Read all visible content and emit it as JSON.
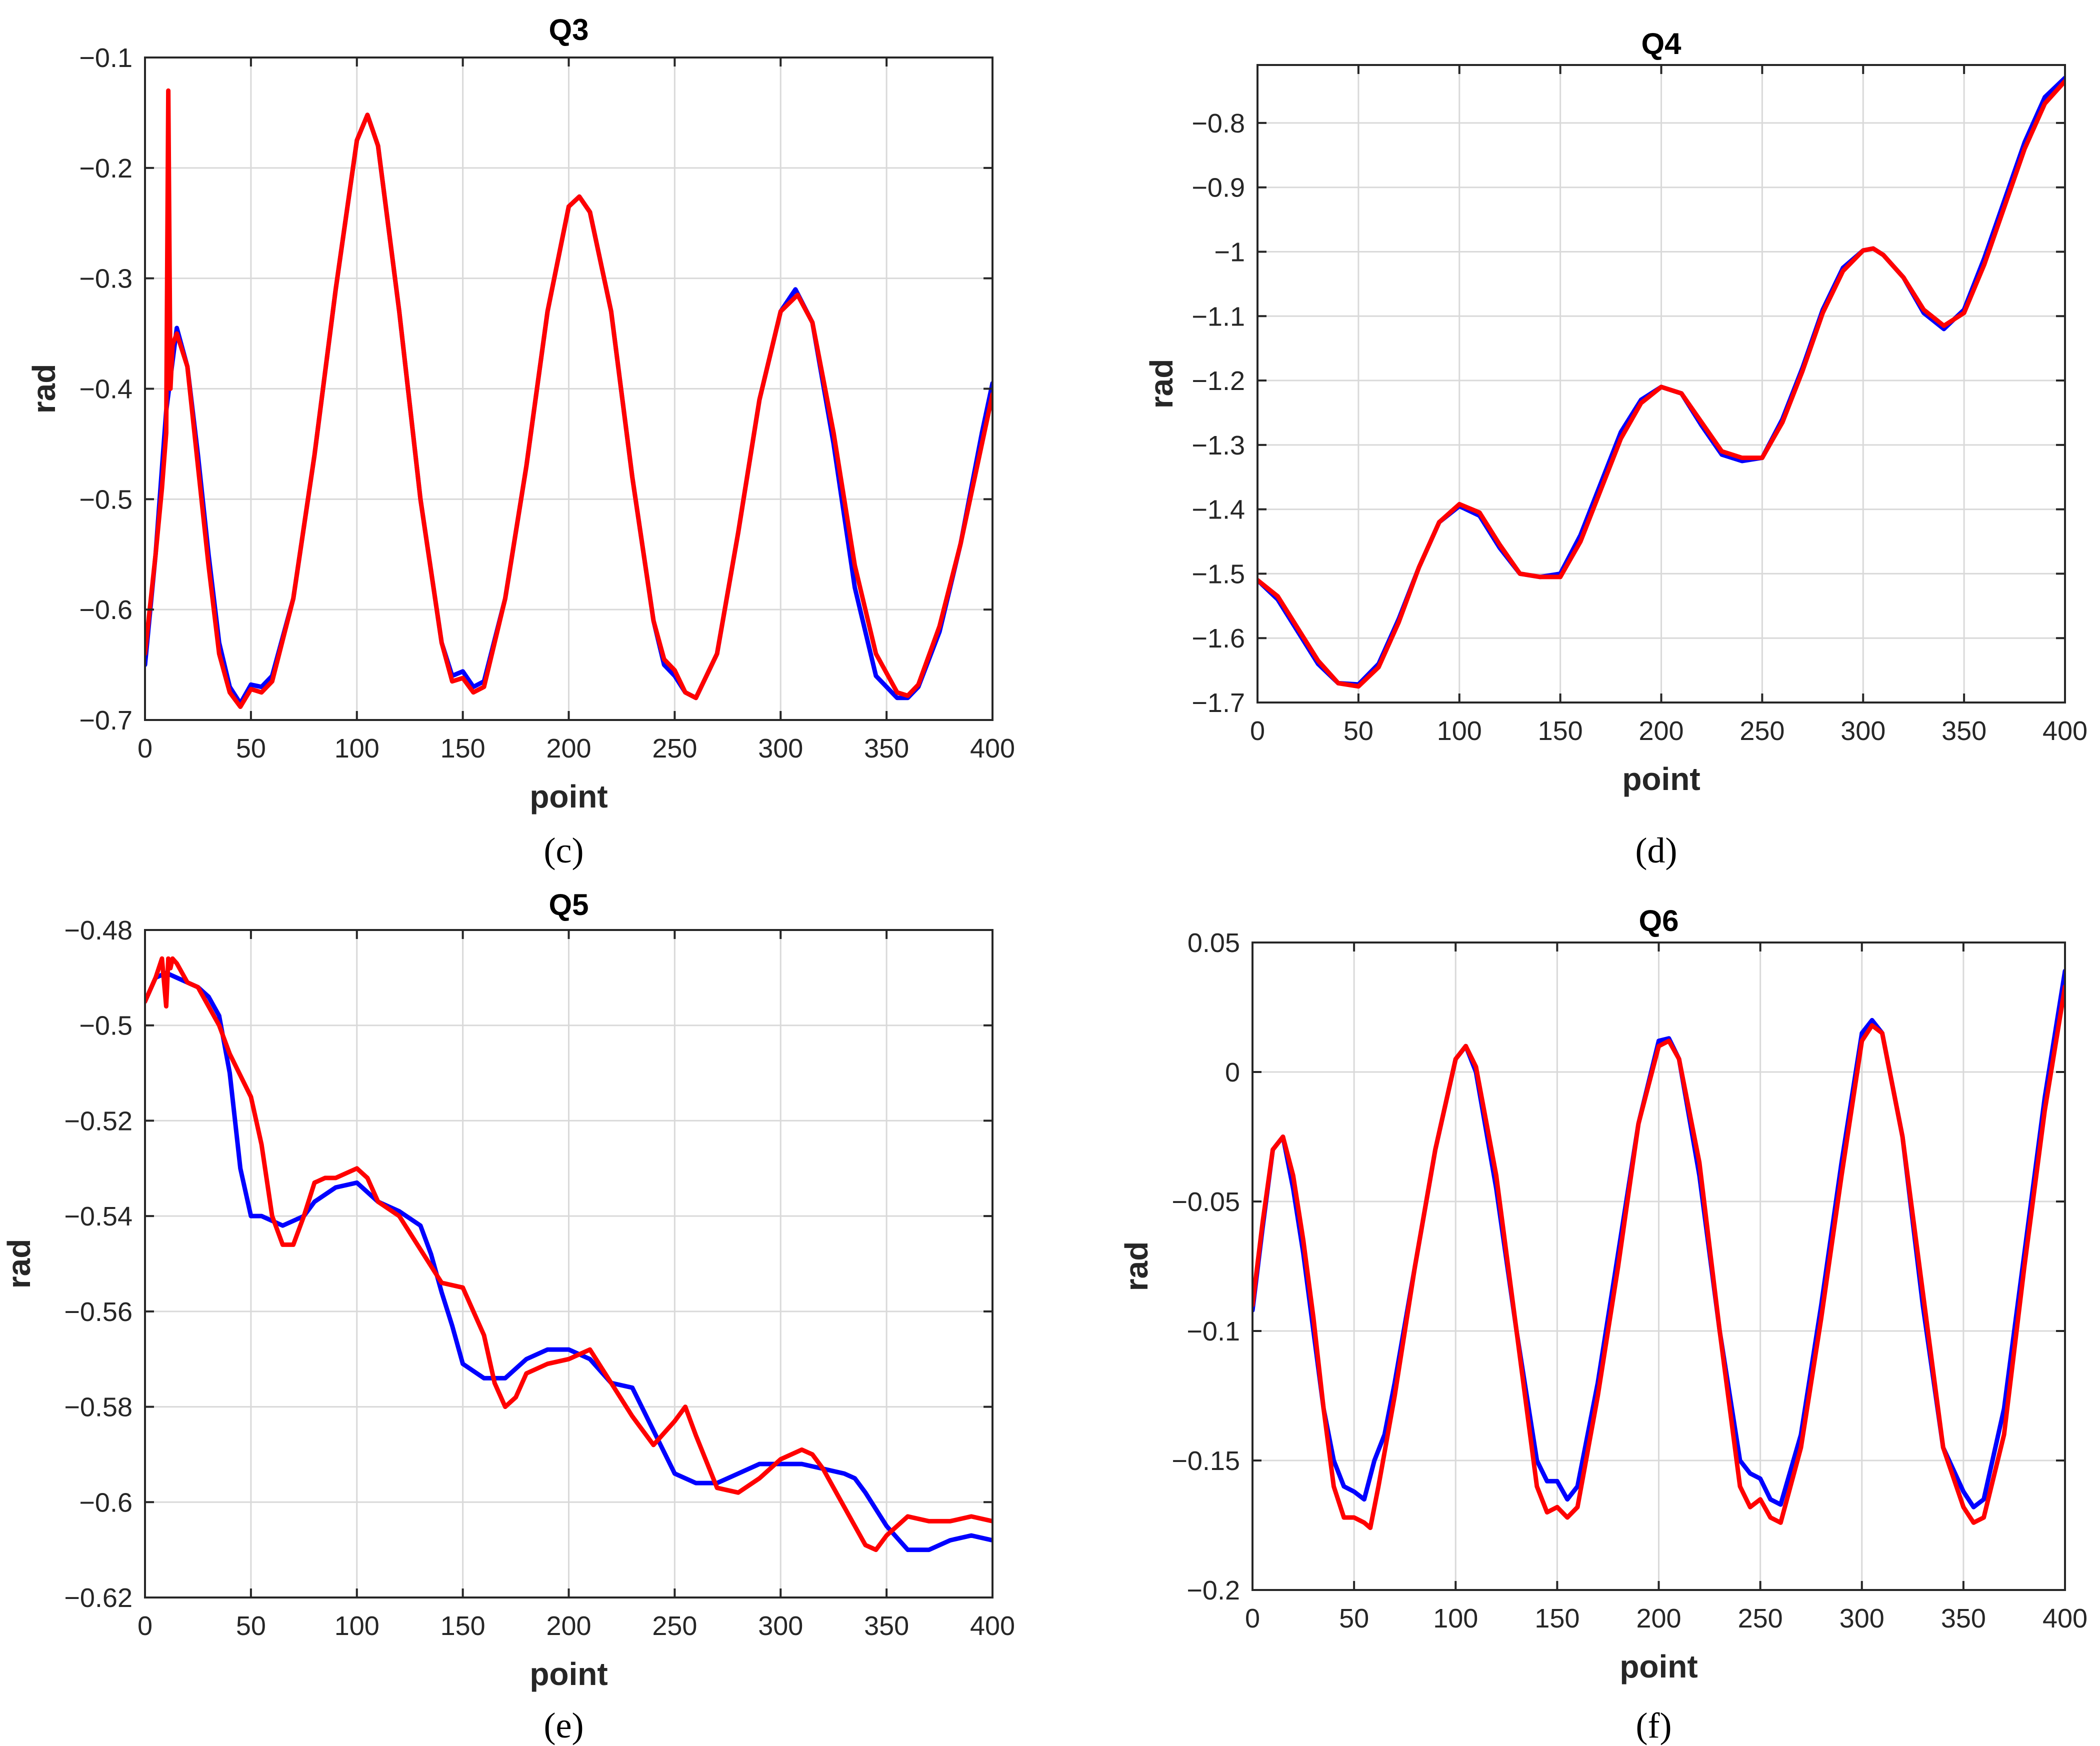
{
  "colors": {
    "measured": "#0000ff",
    "predicted": "#ff0000",
    "grid": "#d9d9d9",
    "axis": "#262626"
  },
  "chart_data": [
    {
      "type": "line",
      "id": "c",
      "title": "Q3",
      "caption": "(c)",
      "xlabel": "point",
      "ylabel": "rad",
      "xlim": [
        0,
        400
      ],
      "ylim": [
        -0.7,
        -0.1
      ],
      "xticks": [
        0,
        50,
        100,
        150,
        200,
        250,
        300,
        350,
        400
      ],
      "yticks": [
        -0.7,
        -0.6,
        -0.5,
        -0.4,
        -0.3,
        -0.2,
        -0.1
      ],
      "xtick_labels": [
        "0",
        "50",
        "100",
        "150",
        "200",
        "250",
        "300",
        "350",
        "400"
      ],
      "ytick_labels": [
        "−0.7",
        "−0.6",
        "−0.5",
        "−0.4",
        "−0.3",
        "−0.2",
        "−0.1"
      ],
      "grid": true,
      "series": [
        {
          "name": "blue",
          "color": "#0000ff",
          "x": [
            0,
            5,
            10,
            15,
            20,
            25,
            30,
            35,
            40,
            45,
            50,
            55,
            60,
            70,
            80,
            90,
            100,
            105,
            110,
            120,
            130,
            140,
            145,
            150,
            155,
            160,
            170,
            180,
            190,
            200,
            205,
            210,
            220,
            230,
            240,
            245,
            250,
            255,
            260,
            270,
            280,
            290,
            300,
            307,
            315,
            325,
            335,
            345,
            355,
            360,
            365,
            375,
            385,
            395,
            400
          ],
          "y": [
            -0.65,
            -0.55,
            -0.42,
            -0.345,
            -0.38,
            -0.46,
            -0.55,
            -0.63,
            -0.67,
            -0.685,
            -0.668,
            -0.67,
            -0.66,
            -0.59,
            -0.46,
            -0.31,
            -0.175,
            -0.152,
            -0.18,
            -0.33,
            -0.5,
            -0.63,
            -0.66,
            -0.656,
            -0.67,
            -0.665,
            -0.59,
            -0.47,
            -0.33,
            -0.235,
            -0.226,
            -0.24,
            -0.33,
            -0.48,
            -0.61,
            -0.65,
            -0.66,
            -0.675,
            -0.68,
            -0.64,
            -0.53,
            -0.41,
            -0.33,
            -0.31,
            -0.34,
            -0.45,
            -0.58,
            -0.66,
            -0.68,
            -0.68,
            -0.67,
            -0.62,
            -0.54,
            -0.44,
            -0.395
          ]
        },
        {
          "name": "red",
          "color": "#ff0000",
          "x": [
            0,
            5,
            8,
            10,
            11,
            12,
            13,
            15,
            20,
            25,
            30,
            35,
            40,
            45,
            50,
            55,
            60,
            70,
            80,
            90,
            100,
            105,
            110,
            120,
            130,
            140,
            145,
            150,
            155,
            160,
            170,
            180,
            190,
            200,
            205,
            210,
            220,
            230,
            240,
            245,
            250,
            255,
            260,
            270,
            280,
            290,
            300,
            308,
            315,
            325,
            335,
            345,
            355,
            360,
            365,
            375,
            385,
            395,
            400
          ],
          "y": [
            -0.64,
            -0.55,
            -0.49,
            -0.44,
            -0.13,
            -0.4,
            -0.36,
            -0.35,
            -0.38,
            -0.47,
            -0.56,
            -0.64,
            -0.675,
            -0.688,
            -0.672,
            -0.675,
            -0.665,
            -0.59,
            -0.46,
            -0.31,
            -0.175,
            -0.152,
            -0.18,
            -0.33,
            -0.5,
            -0.63,
            -0.665,
            -0.662,
            -0.675,
            -0.67,
            -0.59,
            -0.47,
            -0.33,
            -0.235,
            -0.226,
            -0.24,
            -0.33,
            -0.48,
            -0.61,
            -0.645,
            -0.655,
            -0.675,
            -0.68,
            -0.64,
            -0.53,
            -0.41,
            -0.33,
            -0.315,
            -0.34,
            -0.44,
            -0.56,
            -0.64,
            -0.675,
            -0.678,
            -0.668,
            -0.615,
            -0.54,
            -0.45,
            -0.405
          ]
        }
      ]
    },
    {
      "type": "line",
      "id": "d",
      "title": "Q4",
      "caption": "(d)",
      "xlabel": "point",
      "ylabel": "rad",
      "xlim": [
        0,
        400
      ],
      "ylim": [
        -1.7,
        -0.71
      ],
      "xticks": [
        0,
        50,
        100,
        150,
        200,
        250,
        300,
        350,
        400
      ],
      "yticks": [
        -1.7,
        -1.6,
        -1.5,
        -1.4,
        -1.3,
        -1.2,
        -1.1,
        -1.0,
        -0.9,
        -0.8
      ],
      "xtick_labels": [
        "0",
        "50",
        "100",
        "150",
        "200",
        "250",
        "300",
        "350",
        "400"
      ],
      "ytick_labels": [
        "−1.7",
        "−1.6",
        "−1.5",
        "−1.4",
        "−1.3",
        "−1.2",
        "−1.1",
        "−1",
        "−0.9",
        "−0.8"
      ],
      "grid": true,
      "series": [
        {
          "name": "blue",
          "color": "#0000ff",
          "x": [
            0,
            10,
            20,
            30,
            40,
            50,
            60,
            70,
            80,
            90,
            100,
            110,
            120,
            130,
            140,
            150,
            160,
            170,
            180,
            190,
            200,
            210,
            220,
            230,
            240,
            250,
            260,
            270,
            280,
            290,
            300,
            305,
            310,
            320,
            330,
            340,
            350,
            360,
            370,
            380,
            390,
            400
          ],
          "y": [
            -1.51,
            -1.54,
            -1.59,
            -1.64,
            -1.67,
            -1.672,
            -1.64,
            -1.57,
            -1.49,
            -1.42,
            -1.395,
            -1.41,
            -1.46,
            -1.5,
            -1.505,
            -1.5,
            -1.44,
            -1.36,
            -1.28,
            -1.23,
            -1.21,
            -1.22,
            -1.27,
            -1.315,
            -1.325,
            -1.32,
            -1.26,
            -1.18,
            -1.09,
            -1.025,
            -0.998,
            -0.995,
            -1.005,
            -1.04,
            -1.095,
            -1.12,
            -1.09,
            -1.01,
            -0.92,
            -0.83,
            -0.76,
            -0.73
          ]
        },
        {
          "name": "red",
          "color": "#ff0000",
          "x": [
            0,
            10,
            20,
            30,
            40,
            50,
            60,
            70,
            80,
            90,
            100,
            110,
            120,
            130,
            140,
            150,
            160,
            170,
            180,
            190,
            200,
            210,
            220,
            230,
            240,
            250,
            260,
            270,
            280,
            290,
            300,
            305,
            310,
            320,
            330,
            340,
            350,
            360,
            370,
            380,
            390,
            400
          ],
          "y": [
            -1.51,
            -1.535,
            -1.585,
            -1.635,
            -1.67,
            -1.675,
            -1.645,
            -1.575,
            -1.49,
            -1.42,
            -1.392,
            -1.405,
            -1.455,
            -1.5,
            -1.505,
            -1.505,
            -1.45,
            -1.37,
            -1.29,
            -1.235,
            -1.21,
            -1.22,
            -1.265,
            -1.31,
            -1.32,
            -1.32,
            -1.265,
            -1.185,
            -1.095,
            -1.03,
            -0.998,
            -0.995,
            -1.005,
            -1.04,
            -1.09,
            -1.115,
            -1.095,
            -1.02,
            -0.93,
            -0.84,
            -0.77,
            -0.735
          ]
        }
      ]
    },
    {
      "type": "line",
      "id": "e",
      "title": "Q5",
      "caption": "(e)",
      "xlabel": "point",
      "ylabel": "rad",
      "xlim": [
        0,
        400
      ],
      "ylim": [
        -0.62,
        -0.48
      ],
      "xticks": [
        0,
        50,
        100,
        150,
        200,
        250,
        300,
        350,
        400
      ],
      "yticks": [
        -0.62,
        -0.6,
        -0.58,
        -0.56,
        -0.54,
        -0.52,
        -0.5,
        -0.48
      ],
      "xtick_labels": [
        "0",
        "50",
        "100",
        "150",
        "200",
        "250",
        "300",
        "350",
        "400"
      ],
      "ytick_labels": [
        "−0.62",
        "−0.6",
        "−0.58",
        "−0.56",
        "−0.54",
        "−0.52",
        "−0.5",
        "−0.48"
      ],
      "grid": true,
      "series": [
        {
          "name": "blue",
          "color": "#0000ff",
          "x": [
            0,
            5,
            10,
            15,
            20,
            25,
            30,
            35,
            40,
            45,
            50,
            55,
            60,
            65,
            70,
            75,
            80,
            90,
            100,
            110,
            120,
            130,
            135,
            140,
            145,
            150,
            160,
            170,
            180,
            190,
            200,
            210,
            220,
            230,
            240,
            250,
            260,
            270,
            280,
            290,
            300,
            310,
            320,
            330,
            335,
            340,
            350,
            360,
            370,
            380,
            390,
            400
          ],
          "y": [
            -0.495,
            -0.49,
            -0.489,
            -0.49,
            -0.491,
            -0.492,
            -0.494,
            -0.498,
            -0.51,
            -0.53,
            -0.54,
            -0.54,
            -0.541,
            -0.542,
            -0.541,
            -0.54,
            -0.537,
            -0.534,
            -0.533,
            -0.537,
            -0.539,
            -0.542,
            -0.548,
            -0.556,
            -0.563,
            -0.571,
            -0.574,
            -0.574,
            -0.57,
            -0.568,
            -0.568,
            -0.57,
            -0.575,
            -0.576,
            -0.585,
            -0.594,
            -0.596,
            -0.596,
            -0.594,
            -0.592,
            -0.592,
            -0.592,
            -0.593,
            -0.594,
            -0.595,
            -0.598,
            -0.605,
            -0.61,
            -0.61,
            -0.608,
            -0.607,
            -0.608
          ]
        },
        {
          "name": "red",
          "color": "#ff0000",
          "x": [
            0,
            5,
            8,
            10,
            11,
            12,
            13,
            15,
            20,
            25,
            30,
            35,
            40,
            50,
            55,
            60,
            65,
            70,
            75,
            80,
            85,
            90,
            95,
            100,
            105,
            110,
            120,
            130,
            140,
            150,
            160,
            165,
            170,
            175,
            180,
            190,
            200,
            210,
            220,
            230,
            240,
            250,
            255,
            260,
            270,
            280,
            290,
            300,
            310,
            315,
            320,
            330,
            340,
            345,
            350,
            360,
            370,
            380,
            390,
            400
          ],
          "y": [
            -0.495,
            -0.49,
            -0.486,
            -0.496,
            -0.486,
            -0.488,
            -0.486,
            -0.487,
            -0.491,
            -0.492,
            -0.496,
            -0.5,
            -0.506,
            -0.515,
            -0.525,
            -0.54,
            -0.546,
            -0.546,
            -0.54,
            -0.533,
            -0.532,
            -0.532,
            -0.531,
            -0.53,
            -0.532,
            -0.537,
            -0.54,
            -0.547,
            -0.554,
            -0.555,
            -0.565,
            -0.575,
            -0.58,
            -0.578,
            -0.573,
            -0.571,
            -0.57,
            -0.568,
            -0.575,
            -0.582,
            -0.588,
            -0.583,
            -0.58,
            -0.586,
            -0.597,
            -0.598,
            -0.595,
            -0.591,
            -0.589,
            -0.59,
            -0.593,
            -0.601,
            -0.609,
            -0.61,
            -0.607,
            -0.603,
            -0.604,
            -0.604,
            -0.603,
            -0.604
          ]
        }
      ]
    },
    {
      "type": "line",
      "id": "f",
      "title": "Q6",
      "caption": "(f)",
      "xlabel": "point",
      "ylabel": "rad",
      "xlim": [
        0,
        400
      ],
      "ylim": [
        -0.2,
        0.05
      ],
      "xticks": [
        0,
        50,
        100,
        150,
        200,
        250,
        300,
        350,
        400
      ],
      "yticks": [
        -0.2,
        -0.15,
        -0.1,
        -0.05,
        0,
        0.05
      ],
      "xtick_labels": [
        "0",
        "50",
        "100",
        "150",
        "200",
        "250",
        "300",
        "350",
        "400"
      ],
      "ytick_labels": [
        "−0.2",
        "−0.15",
        "−0.1",
        "−0.05",
        "0",
        "0.05"
      ],
      "grid": true,
      "series": [
        {
          "name": "blue",
          "color": "#0000ff",
          "x": [
            0,
            5,
            10,
            15,
            20,
            25,
            30,
            35,
            40,
            45,
            50,
            55,
            60,
            65,
            70,
            80,
            90,
            100,
            105,
            110,
            120,
            130,
            140,
            145,
            150,
            155,
            160,
            170,
            180,
            190,
            200,
            205,
            210,
            220,
            230,
            240,
            245,
            250,
            255,
            260,
            270,
            280,
            290,
            300,
            305,
            310,
            320,
            330,
            340,
            350,
            355,
            360,
            370,
            380,
            390,
            400
          ],
          "y": [
            -0.092,
            -0.06,
            -0.03,
            -0.025,
            -0.045,
            -0.07,
            -0.1,
            -0.13,
            -0.15,
            -0.16,
            -0.162,
            -0.165,
            -0.15,
            -0.14,
            -0.12,
            -0.075,
            -0.03,
            0.005,
            0.01,
            0.0,
            -0.045,
            -0.1,
            -0.15,
            -0.158,
            -0.158,
            -0.165,
            -0.16,
            -0.12,
            -0.07,
            -0.02,
            0.012,
            0.013,
            0.005,
            -0.04,
            -0.1,
            -0.15,
            -0.155,
            -0.157,
            -0.165,
            -0.167,
            -0.14,
            -0.09,
            -0.035,
            0.015,
            0.02,
            0.015,
            -0.025,
            -0.09,
            -0.145,
            -0.162,
            -0.168,
            -0.165,
            -0.13,
            -0.07,
            -0.01,
            0.039
          ]
        },
        {
          "name": "red",
          "color": "#ff0000",
          "x": [
            0,
            5,
            10,
            15,
            20,
            25,
            30,
            35,
            40,
            45,
            50,
            55,
            58,
            62,
            70,
            80,
            90,
            100,
            105,
            110,
            120,
            130,
            140,
            145,
            150,
            155,
            160,
            170,
            180,
            190,
            200,
            205,
            210,
            220,
            230,
            240,
            245,
            250,
            255,
            260,
            270,
            280,
            290,
            300,
            305,
            310,
            320,
            330,
            340,
            350,
            355,
            360,
            370,
            380,
            390,
            400
          ],
          "y": [
            -0.09,
            -0.058,
            -0.03,
            -0.025,
            -0.04,
            -0.065,
            -0.095,
            -0.13,
            -0.16,
            -0.172,
            -0.172,
            -0.174,
            -0.176,
            -0.16,
            -0.125,
            -0.075,
            -0.03,
            0.005,
            0.01,
            0.002,
            -0.04,
            -0.1,
            -0.16,
            -0.17,
            -0.168,
            -0.172,
            -0.168,
            -0.125,
            -0.075,
            -0.02,
            0.01,
            0.012,
            0.005,
            -0.035,
            -0.1,
            -0.16,
            -0.168,
            -0.165,
            -0.172,
            -0.174,
            -0.145,
            -0.095,
            -0.04,
            0.012,
            0.018,
            0.015,
            -0.025,
            -0.085,
            -0.145,
            -0.168,
            -0.174,
            -0.172,
            -0.14,
            -0.075,
            -0.015,
            0.033
          ]
        }
      ]
    }
  ]
}
